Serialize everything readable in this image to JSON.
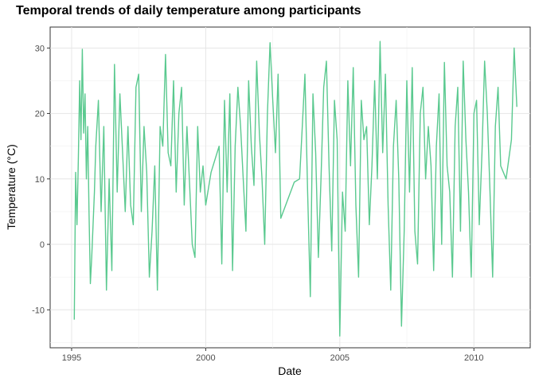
{
  "chart_data": {
    "type": "line",
    "title": "Temporal trends of daily temperature among participants",
    "xlabel": "Date",
    "ylabel": "Temperature (°C)",
    "x_ticks": [
      1995,
      2000,
      2005,
      2010
    ],
    "y_ticks": [
      -10,
      0,
      10,
      20,
      30
    ],
    "xlim": [
      1994.2,
      2012.1
    ],
    "ylim": [
      -15.8,
      33.2
    ],
    "grid": true,
    "line_color": "#5ac98f",
    "series": [
      {
        "x": [
          1995.1,
          1995.15,
          1995.2,
          1995.25,
          1995.3,
          1995.35,
          1995.4,
          1995.45,
          1995.5,
          1995.55,
          1995.6,
          1995.65,
          1995.7,
          1995.75,
          1995.8,
          1995.85,
          1995.9,
          1996.0,
          1996.1,
          1996.2,
          1996.3,
          1996.4,
          1996.5,
          1996.6,
          1996.7,
          1996.8,
          1996.9,
          1997.0,
          1997.1,
          1997.2,
          1997.3,
          1997.4,
          1997.5,
          1997.6,
          1997.7,
          1997.8,
          1997.9,
          1998.0,
          1998.1,
          1998.2,
          1998.3,
          1998.4,
          1998.5,
          1998.6,
          1998.7,
          1998.8,
          1998.9,
          1999.0,
          1999.1,
          1999.2,
          1999.3,
          1999.4,
          1999.5,
          1999.6,
          1999.7,
          1999.8,
          1999.9,
          2000.0,
          2000.2,
          2000.5,
          2000.6,
          2000.7,
          2000.8,
          2000.9,
          2001.0,
          2001.1,
          2001.2,
          2001.3,
          2001.4,
          2001.5,
          2001.6,
          2001.7,
          2001.8,
          2001.9,
          2002.0,
          2002.1,
          2002.2,
          2002.3,
          2002.4,
          2002.5,
          2002.6,
          2002.7,
          2002.8,
          2003.3,
          2003.5,
          2003.6,
          2003.7,
          2003.8,
          2003.9,
          2004.0,
          2004.1,
          2004.2,
          2004.3,
          2004.4,
          2004.5,
          2004.6,
          2004.7,
          2004.8,
          2004.9,
          2005.0,
          2005.1,
          2005.2,
          2005.3,
          2005.4,
          2005.5,
          2005.6,
          2005.7,
          2005.8,
          2005.9,
          2006.0,
          2006.1,
          2006.2,
          2006.3,
          2006.4,
          2006.5,
          2006.6,
          2006.7,
          2006.8,
          2006.9,
          2007.0,
          2007.1,
          2007.2,
          2007.3,
          2007.4,
          2007.5,
          2007.6,
          2007.7,
          2007.8,
          2007.9,
          2008.0,
          2008.1,
          2008.2,
          2008.3,
          2008.4,
          2008.5,
          2008.6,
          2008.7,
          2008.8,
          2008.9,
          2009.0,
          2009.1,
          2009.2,
          2009.3,
          2009.4,
          2009.5,
          2009.6,
          2009.7,
          2009.8,
          2009.9,
          2010.0,
          2010.1,
          2010.2,
          2010.3,
          2010.4,
          2010.5,
          2010.6,
          2010.7,
          2010.8,
          2010.9,
          2011.0,
          2011.2,
          2011.4,
          2011.5,
          2011.6
        ],
        "y": [
          -11.5,
          11,
          3,
          13,
          25,
          16,
          29.8,
          17,
          23,
          10,
          18,
          5,
          -6,
          -2,
          3,
          8,
          15,
          22,
          5,
          18,
          -7,
          10,
          -4,
          27.5,
          8,
          23,
          14,
          5,
          18,
          6,
          3,
          24,
          26,
          5,
          18,
          11,
          -5,
          2,
          12,
          -7,
          18,
          15,
          29,
          14,
          12,
          25,
          8,
          20,
          24,
          6,
          18,
          9,
          0,
          -2,
          18,
          8,
          12,
          6,
          11,
          15,
          -3,
          22,
          8,
          23,
          -4,
          15,
          24,
          18,
          10,
          2,
          25,
          15,
          9,
          28,
          17,
          10,
          0,
          20,
          30.8,
          22,
          14,
          26,
          4,
          9.5,
          10,
          18,
          26,
          8,
          -8,
          23,
          14,
          -2,
          10,
          24,
          28,
          12,
          -1,
          22,
          16,
          -14,
          8,
          2,
          25,
          12,
          27,
          6,
          -5,
          22,
          16,
          18,
          3,
          12,
          25,
          10,
          31,
          14,
          26,
          6,
          -7,
          15,
          22,
          10,
          -12.5,
          2,
          25,
          8,
          27,
          2,
          -3,
          20,
          24,
          10,
          18,
          12,
          -4,
          15,
          23,
          0,
          27.8,
          12,
          8,
          -5,
          18,
          24,
          2,
          28,
          16,
          8,
          -5,
          20,
          22,
          3,
          14,
          28,
          20,
          8,
          -5,
          18,
          24,
          12,
          10,
          16,
          30,
          21
        ]
      }
    ]
  }
}
